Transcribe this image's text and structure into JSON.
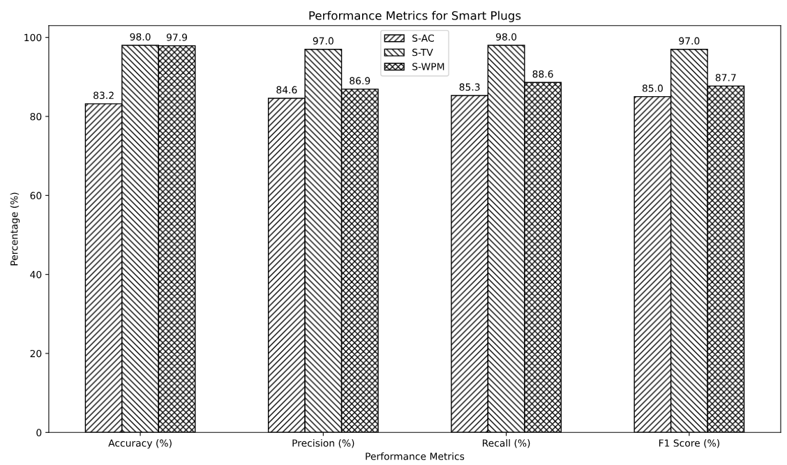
{
  "chart_data": {
    "type": "bar",
    "title": "Performance Metrics for Smart Plugs",
    "xlabel": "Performance Metrics",
    "ylabel": "Percentage (%)",
    "categories": [
      "Accuracy (%)",
      "Precision (%)",
      "Recall (%)",
      "F1 Score (%)"
    ],
    "series": [
      {
        "name": "S-AC",
        "color": "#000000",
        "values": [
          83.2,
          84.6,
          85.3,
          85.0
        ],
        "value_labels": [
          "83.2",
          "84.6",
          "85.3",
          "85.0"
        ]
      },
      {
        "name": "S-TV",
        "color": "#000000",
        "values": [
          98.0,
          97.0,
          98.0,
          97.0
        ],
        "value_labels": [
          "98.0",
          "97.0",
          "98.0",
          "97.0"
        ]
      },
      {
        "name": "S-WPM",
        "color": "#000000",
        "values": [
          97.9,
          86.9,
          88.6,
          87.7
        ],
        "value_labels": [
          "97.9",
          "86.9",
          "88.6",
          "87.7"
        ]
      }
    ],
    "ylim": [
      0,
      103
    ],
    "yticks": [
      0,
      20,
      40,
      60,
      80,
      100
    ],
    "legend": "top center",
    "grid": false
  }
}
